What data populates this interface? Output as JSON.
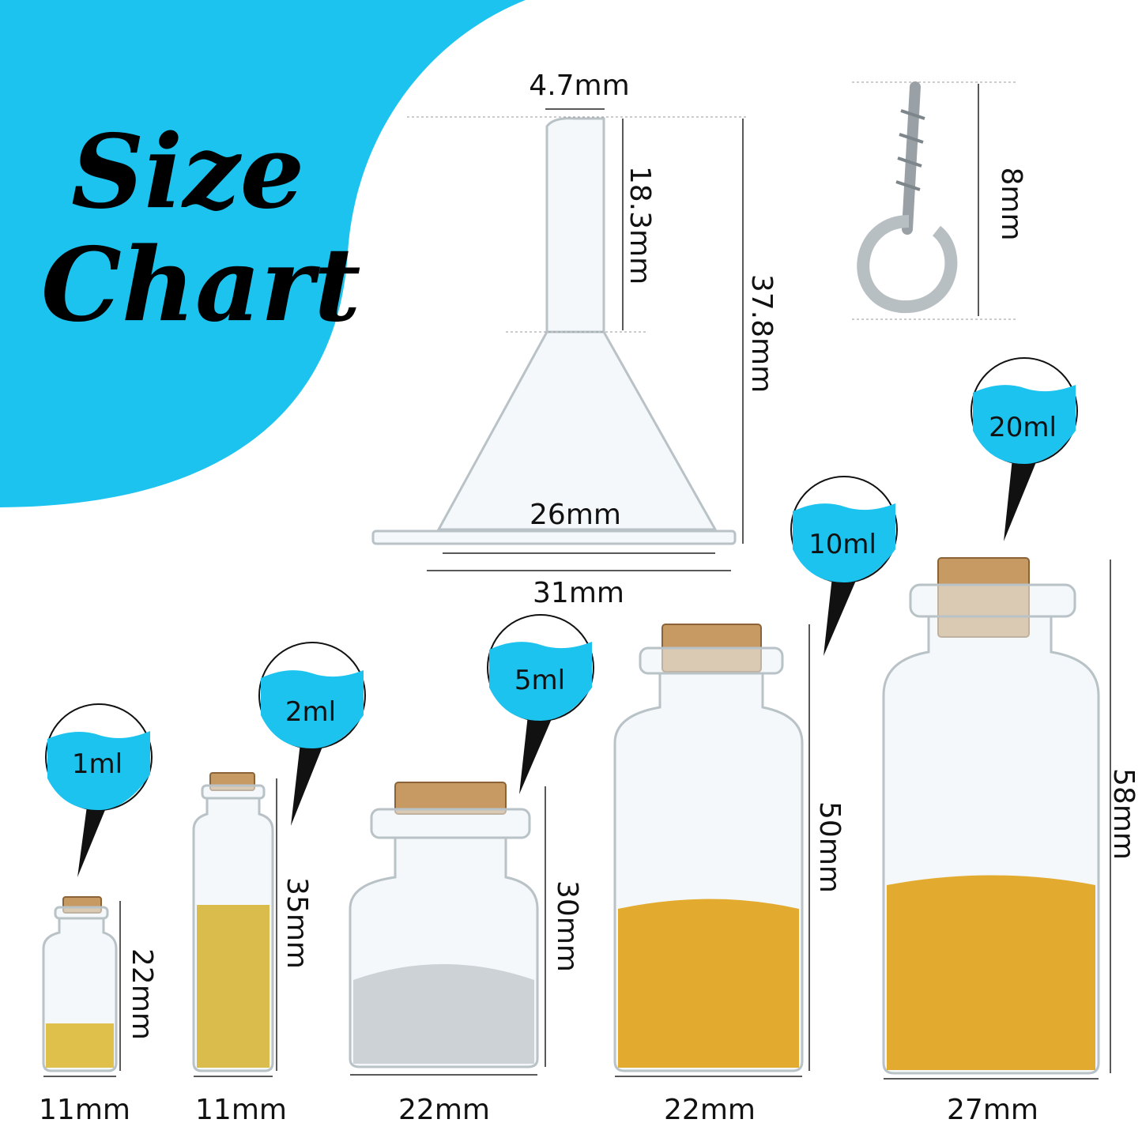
{
  "title": {
    "line1": "Size",
    "line2": "Chart"
  },
  "colors": {
    "accent_blue": "#1cc3ef",
    "cork": "#c79a63",
    "gold": "#e0a21a",
    "silver": "#c8cdd2"
  },
  "funnel": {
    "tip_width": "4.7mm",
    "stem_height": "18.3mm",
    "total_height": "37.8mm",
    "cone_width": "26mm",
    "flange_width": "31mm"
  },
  "eye_screw": {
    "height": "8mm"
  },
  "bottles": [
    {
      "capacity": "1ml",
      "height": "22mm",
      "width": "11mm",
      "filling": "gold glitter"
    },
    {
      "capacity": "2ml",
      "height": "35mm",
      "width": "11mm",
      "filling": "gold glitter"
    },
    {
      "capacity": "5ml",
      "height": "30mm",
      "width": "22mm",
      "filling": "silver stars"
    },
    {
      "capacity": "10ml",
      "height": "50mm",
      "width": "22mm",
      "filling": "gold sequins"
    },
    {
      "capacity": "20ml",
      "height": "58mm",
      "width": "27mm",
      "filling": "gold sequins"
    }
  ]
}
